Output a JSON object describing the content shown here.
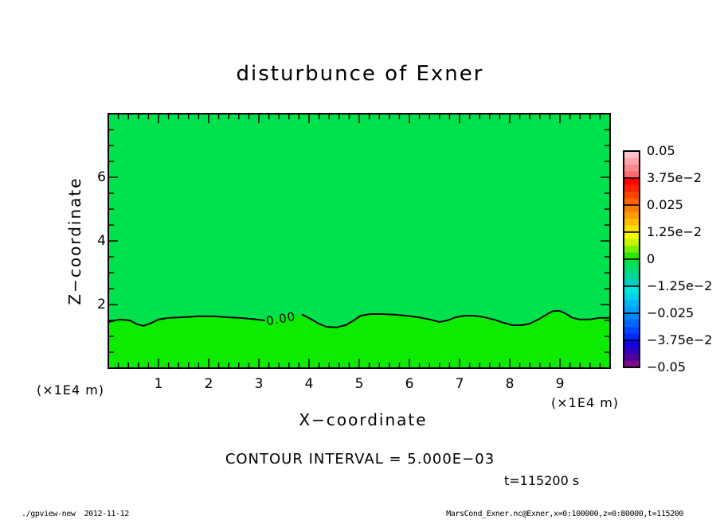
{
  "title": "disturbunce of Exner",
  "axes": {
    "x": {
      "label": "X−coordinate",
      "unit_left": "(×1E4 m)",
      "unit_right": "(×1E4 m)",
      "tick_labels": [
        "1",
        "2",
        "3",
        "4",
        "5",
        "6",
        "7",
        "8",
        "9"
      ]
    },
    "z": {
      "label": "Z−coordinate",
      "tick_labels": [
        "2",
        "4",
        "6"
      ]
    }
  },
  "annotations": {
    "contour_interval": "CONTOUR INTERVAL = 5.000E−03",
    "time": "t=115200 s",
    "contour_label": "0.00"
  },
  "footer": {
    "left": "./gpview-new  2012-11-12",
    "right": "MarsCond_Exner.nc@Exner,x=0:100000,z=0:80000,t=115200"
  },
  "colors": {
    "upper_region": "#00e24d",
    "lower_region": "#0ceb00",
    "frame": "#000000",
    "contour": "#000000"
  },
  "colorbar": {
    "labels": [
      "0.05",
      "3.75e−2",
      "0.025",
      "1.25e−2",
      "0",
      "−1.25e−2",
      "−0.025",
      "−3.75e−2",
      "−0.05"
    ],
    "cells": [
      [
        "#ffc0c8",
        "#ffa4ab",
        "#ff878e",
        "#ff6a70"
      ],
      [
        "#ff0000",
        "#ff2100",
        "#ff4200",
        "#ff6300"
      ],
      [
        "#ff7b00",
        "#ff9c00",
        "#ffbd00",
        "#ffde00"
      ],
      [
        "#f8f800",
        "#c8f300",
        "#7eee00",
        "#2ae900"
      ],
      [
        "#00e24d",
        "#00dc73",
        "#00d699",
        "#00d0bf"
      ],
      [
        "#00e6da",
        "#00d2e8",
        "#00b8f6",
        "#009eff"
      ],
      [
        "#0084ff",
        "#0066ff",
        "#0048ff",
        "#002aff"
      ],
      [
        "#1000e6",
        "#3000c0",
        "#50009e",
        "#7c0a8e"
      ]
    ]
  },
  "chart_data": {
    "type": "filled-contour",
    "title": "disturbunce of Exner",
    "xlabel": "X−coordinate (×1E4 m)",
    "ylabel": "Z−coordinate (×1E4 m)",
    "xlim": [
      0,
      10
    ],
    "ylim": [
      0,
      8
    ],
    "x_tick_step": 1,
    "x_minor_tick_step": 0.2,
    "z_tick_label_step": 2,
    "z_minor_tick_step": 0.5,
    "contour_interval": 0.005,
    "visible_contour_level": 0.0,
    "colorbar_ticks": [
      0.05,
      0.0375,
      0.025,
      0.0125,
      0,
      -0.0125,
      -0.025,
      -0.0375,
      -0.05
    ],
    "region_above_contour": "slightly negative, uniform green",
    "region_below_contour": "slightly positive, bright green",
    "time_seconds": 115200,
    "zero_contour": {
      "x": [
        0,
        0.22,
        0.43,
        0.57,
        0.7,
        0.83,
        1.0,
        1.21,
        1.49,
        1.81,
        2.1,
        2.37,
        2.6,
        2.84,
        3.11,
        3.49,
        3.87,
        4.03,
        4.19,
        4.35,
        4.54,
        4.73,
        4.89,
        5.03,
        5.22,
        5.46,
        5.7,
        5.94,
        6.18,
        6.41,
        6.6,
        6.76,
        6.92,
        7.1,
        7.29,
        7.49,
        7.68,
        7.87,
        8.06,
        8.24,
        8.4,
        8.57,
        8.75,
        8.87,
        9.0,
        9.13,
        9.25,
        9.4,
        9.59,
        9.78,
        10.0
      ],
      "z": [
        1.45,
        1.53,
        1.5,
        1.38,
        1.33,
        1.4,
        1.53,
        1.58,
        1.6,
        1.63,
        1.63,
        1.6,
        1.58,
        1.55,
        1.5,
        1.58,
        1.68,
        1.55,
        1.4,
        1.3,
        1.28,
        1.35,
        1.5,
        1.65,
        1.7,
        1.7,
        1.68,
        1.65,
        1.6,
        1.53,
        1.45,
        1.5,
        1.6,
        1.65,
        1.65,
        1.6,
        1.53,
        1.43,
        1.35,
        1.35,
        1.4,
        1.53,
        1.7,
        1.8,
        1.8,
        1.7,
        1.58,
        1.53,
        1.53,
        1.58,
        1.58
      ],
      "label_gap_x": [
        3.15,
        3.85
      ]
    }
  }
}
